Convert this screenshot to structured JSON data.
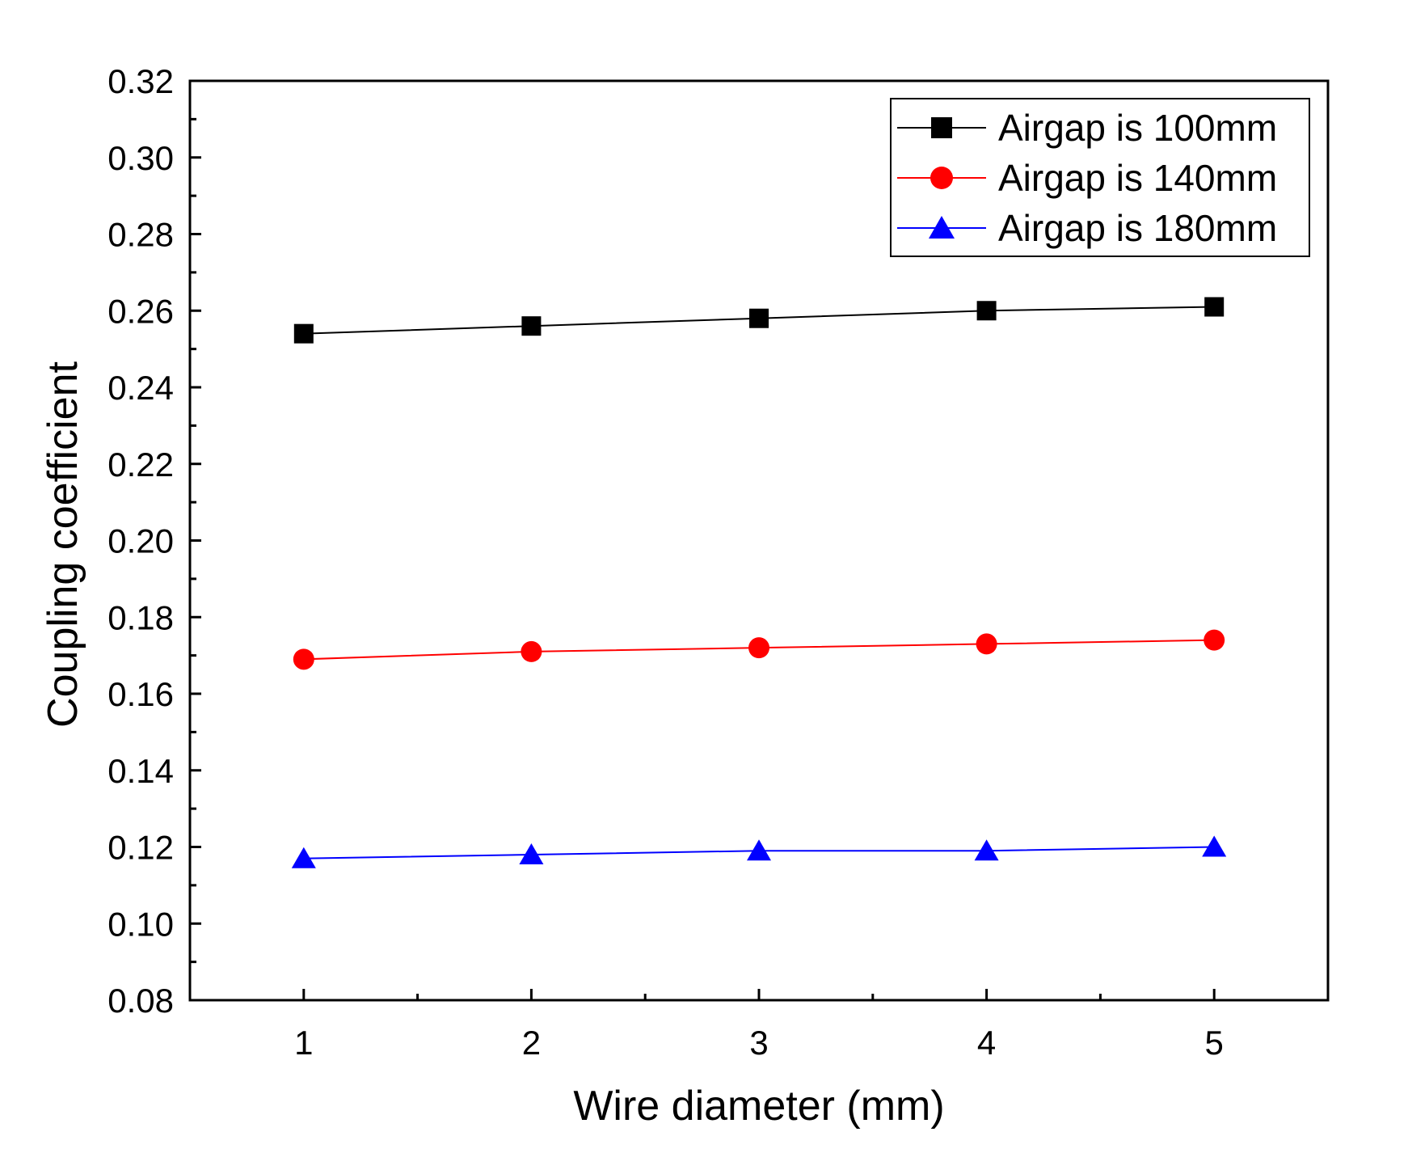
{
  "chart_data": {
    "type": "line",
    "title": "",
    "xlabel": "Wire diameter (mm)",
    "ylabel": "Coupling coefficient",
    "x": [
      1,
      2,
      3,
      4,
      5
    ],
    "xlim": [
      0.5,
      5.5
    ],
    "ylim": [
      0.08,
      0.32
    ],
    "xticks": [
      1,
      2,
      3,
      4,
      5
    ],
    "xtick_labels": [
      "1",
      "2",
      "3",
      "4",
      "5"
    ],
    "yticks": [
      0.08,
      0.1,
      0.12,
      0.14,
      0.16,
      0.18,
      0.2,
      0.22,
      0.24,
      0.26,
      0.28,
      0.3,
      0.32
    ],
    "ytick_labels": [
      "0.08",
      "0.10",
      "0.12",
      "0.14",
      "0.16",
      "0.18",
      "0.20",
      "0.22",
      "0.24",
      "0.26",
      "0.28",
      "0.30",
      "0.32"
    ],
    "grid": false,
    "legend_position": "top-right",
    "series": [
      {
        "name": "Airgap is 100mm",
        "marker": "square",
        "color": "#000000",
        "values": [
          0.254,
          0.256,
          0.258,
          0.26,
          0.261
        ]
      },
      {
        "name": "Airgap is 140mm",
        "marker": "circle",
        "color": "#ff0000",
        "values": [
          0.169,
          0.171,
          0.172,
          0.173,
          0.174
        ]
      },
      {
        "name": "Airgap is 180mm",
        "marker": "triangle",
        "color": "#0000ff",
        "values": [
          0.117,
          0.118,
          0.119,
          0.119,
          0.12
        ]
      }
    ]
  }
}
